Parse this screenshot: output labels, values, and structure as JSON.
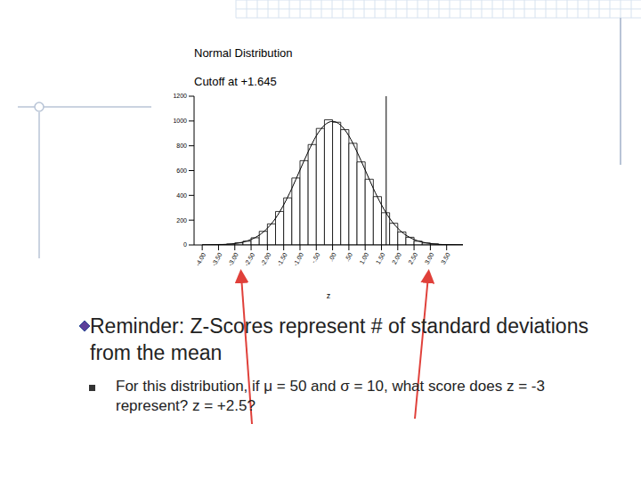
{
  "chart_data": {
    "type": "histogram",
    "title": "Normal Distribution",
    "subtitle": "Cutoff at +1.645",
    "x_label": "z",
    "bins": [
      -4.0,
      -3.75,
      -3.5,
      -3.25,
      -3.0,
      -2.75,
      -2.5,
      -2.25,
      -2.0,
      -1.75,
      -1.5,
      -1.25,
      -1.0,
      -0.75,
      -0.5,
      -0.25,
      0.0,
      0.25,
      0.5,
      0.75,
      1.0,
      1.25,
      1.5,
      1.75,
      2.0,
      2.25,
      2.5,
      2.75,
      3.0,
      3.25,
      3.5,
      3.75,
      4.0
    ],
    "values": [
      1,
      2,
      4,
      8,
      17,
      30,
      58,
      110,
      170,
      270,
      380,
      540,
      680,
      810,
      940,
      1010,
      990,
      930,
      820,
      670,
      530,
      390,
      260,
      175,
      105,
      62,
      30,
      16,
      9,
      3,
      2,
      1
    ],
    "curve": {
      "x": [
        -4.0,
        -3.75,
        -3.5,
        -3.25,
        -3.0,
        -2.75,
        -2.5,
        -2.25,
        -2.0,
        -1.75,
        -1.5,
        -1.25,
        -1.0,
        -0.75,
        -0.5,
        -0.25,
        0.0,
        0.25,
        0.5,
        0.75,
        1.0,
        1.25,
        1.5,
        1.75,
        2.0,
        2.25,
        2.5,
        2.75,
        3.0,
        3.25,
        3.5,
        3.75,
        4.0
      ],
      "values": [
        0.3,
        0.9,
        2.2,
        5,
        11,
        23,
        44,
        79,
        135,
        215,
        324,
        456,
        605,
        751,
        880,
        966,
        997,
        966,
        880,
        751,
        605,
        456,
        324,
        215,
        135,
        79,
        44,
        23,
        11,
        5,
        2.2,
        0.9,
        0.3
      ]
    },
    "cutoff": 1.645,
    "xlim": [
      -4.25,
      4.0
    ],
    "xticks": [
      {
        "value": -4.0,
        "label": "-4.00"
      },
      {
        "value": -3.5,
        "label": "-3.50"
      },
      {
        "value": -3.0,
        "label": "-3.00"
      },
      {
        "value": -2.5,
        "label": "-2.50"
      },
      {
        "value": -2.0,
        "label": "-2.00"
      },
      {
        "value": -1.5,
        "label": "-1.50"
      },
      {
        "value": -1.0,
        "label": "-1.00"
      },
      {
        "value": -0.5,
        "label": "-.50"
      },
      {
        "value": 0,
        "label": ".00"
      },
      {
        "value": 0.5,
        "label": ".50"
      },
      {
        "value": 1.0,
        "label": "1.00"
      },
      {
        "value": 1.5,
        "label": "1.50"
      },
      {
        "value": 2.0,
        "label": "2.00"
      },
      {
        "value": 2.5,
        "label": "2.50"
      },
      {
        "value": 3.0,
        "label": "3.00"
      },
      {
        "value": 3.5,
        "label": "3.50"
      }
    ],
    "ylim": [
      0,
      1200
    ],
    "yticks": [
      0,
      200,
      400,
      600,
      800,
      1000,
      1200
    ]
  },
  "text": {
    "bullet": "Reminder: Z-Scores represent # of standard deviations from the mean",
    "sub_bullet": "For this distribution, if μ = 50 and σ = 10, what score does z = -3 represent? z = +2.5?"
  }
}
